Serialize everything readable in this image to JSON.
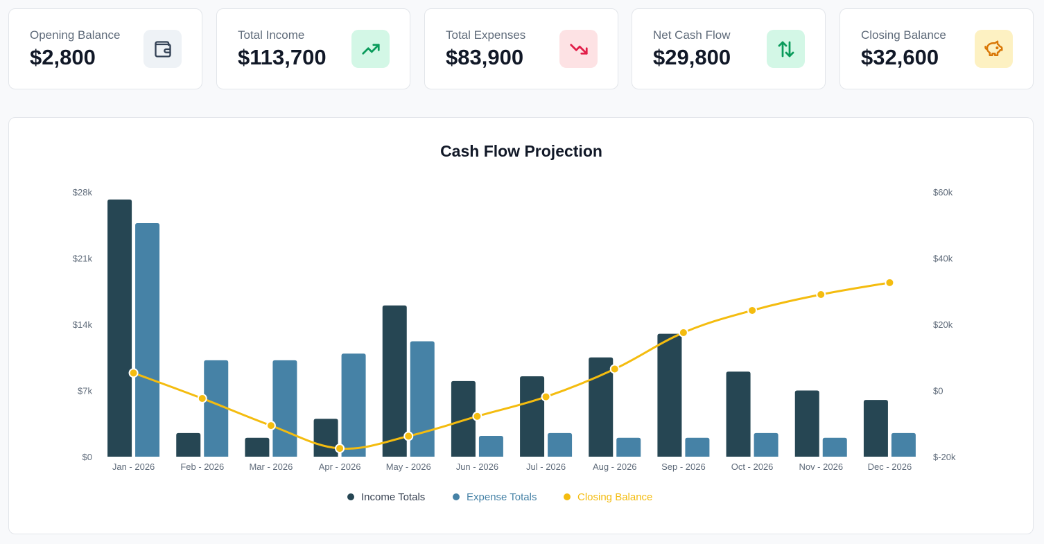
{
  "stats": [
    {
      "label": "Opening Balance",
      "value": "$2,800",
      "icon": "wallet-icon",
      "icon_bg": "#eef2f6",
      "icon_color": "#334155"
    },
    {
      "label": "Total Income",
      "value": "$113,700",
      "icon": "trending-up-icon",
      "icon_bg": "#d3f7e6",
      "icon_color": "#0a9b5b"
    },
    {
      "label": "Total Expenses",
      "value": "$83,900",
      "icon": "trending-down-icon",
      "icon_bg": "#fde2e4",
      "icon_color": "#e11d48"
    },
    {
      "label": "Net Cash Flow",
      "value": "$29,800",
      "icon": "arrows-up-down-icon",
      "icon_bg": "#d3f7e6",
      "icon_color": "#0a9b5b"
    },
    {
      "label": "Closing Balance",
      "value": "$32,600",
      "icon": "piggy-bank-icon",
      "icon_bg": "#fdf1c2",
      "icon_color": "#d97706"
    }
  ],
  "chart_data": {
    "type": "bar",
    "title": "Cash Flow Projection",
    "categories": [
      "Jan - 2026",
      "Feb - 2026",
      "Mar - 2026",
      "Apr - 2026",
      "May - 2026",
      "Jun - 2026",
      "Jul - 2026",
      "Aug - 2026",
      "Sep - 2026",
      "Oct - 2026",
      "Nov - 2026",
      "Dec - 2026"
    ],
    "y_left": {
      "ylim": [
        0,
        28000
      ],
      "ticks": [
        0,
        7000,
        14000,
        21000,
        28000
      ],
      "tick_labels": [
        "$0",
        "$7k",
        "$14k",
        "$21k",
        "$28k"
      ]
    },
    "y_right": {
      "ylim": [
        -20000,
        60000
      ],
      "ticks": [
        -20000,
        0,
        20000,
        40000,
        60000
      ],
      "tick_labels": [
        "$-20k",
        "$0",
        "$20k",
        "$40k",
        "$60k"
      ]
    },
    "series": [
      {
        "name": "Income Totals",
        "type": "bar",
        "axis": "left",
        "color": "#264653",
        "values": [
          27200,
          2500,
          2000,
          4000,
          16000,
          8000,
          8500,
          10500,
          13000,
          9000,
          7000,
          6000
        ]
      },
      {
        "name": "Expense Totals",
        "type": "bar",
        "axis": "left",
        "color": "#4682a6",
        "values": [
          24700,
          10200,
          10200,
          10900,
          12200,
          2200,
          2500,
          2000,
          2000,
          2500,
          2000,
          2500
        ]
      },
      {
        "name": "Closing Balance",
        "type": "line",
        "axis": "right",
        "color": "#f4bc0f",
        "values": [
          5300,
          -2400,
          -10600,
          -17500,
          -13800,
          -7800,
          -1900,
          6500,
          17500,
          24200,
          29000,
          32600
        ]
      }
    ],
    "legend_position": "bottom-center",
    "grid": false
  }
}
